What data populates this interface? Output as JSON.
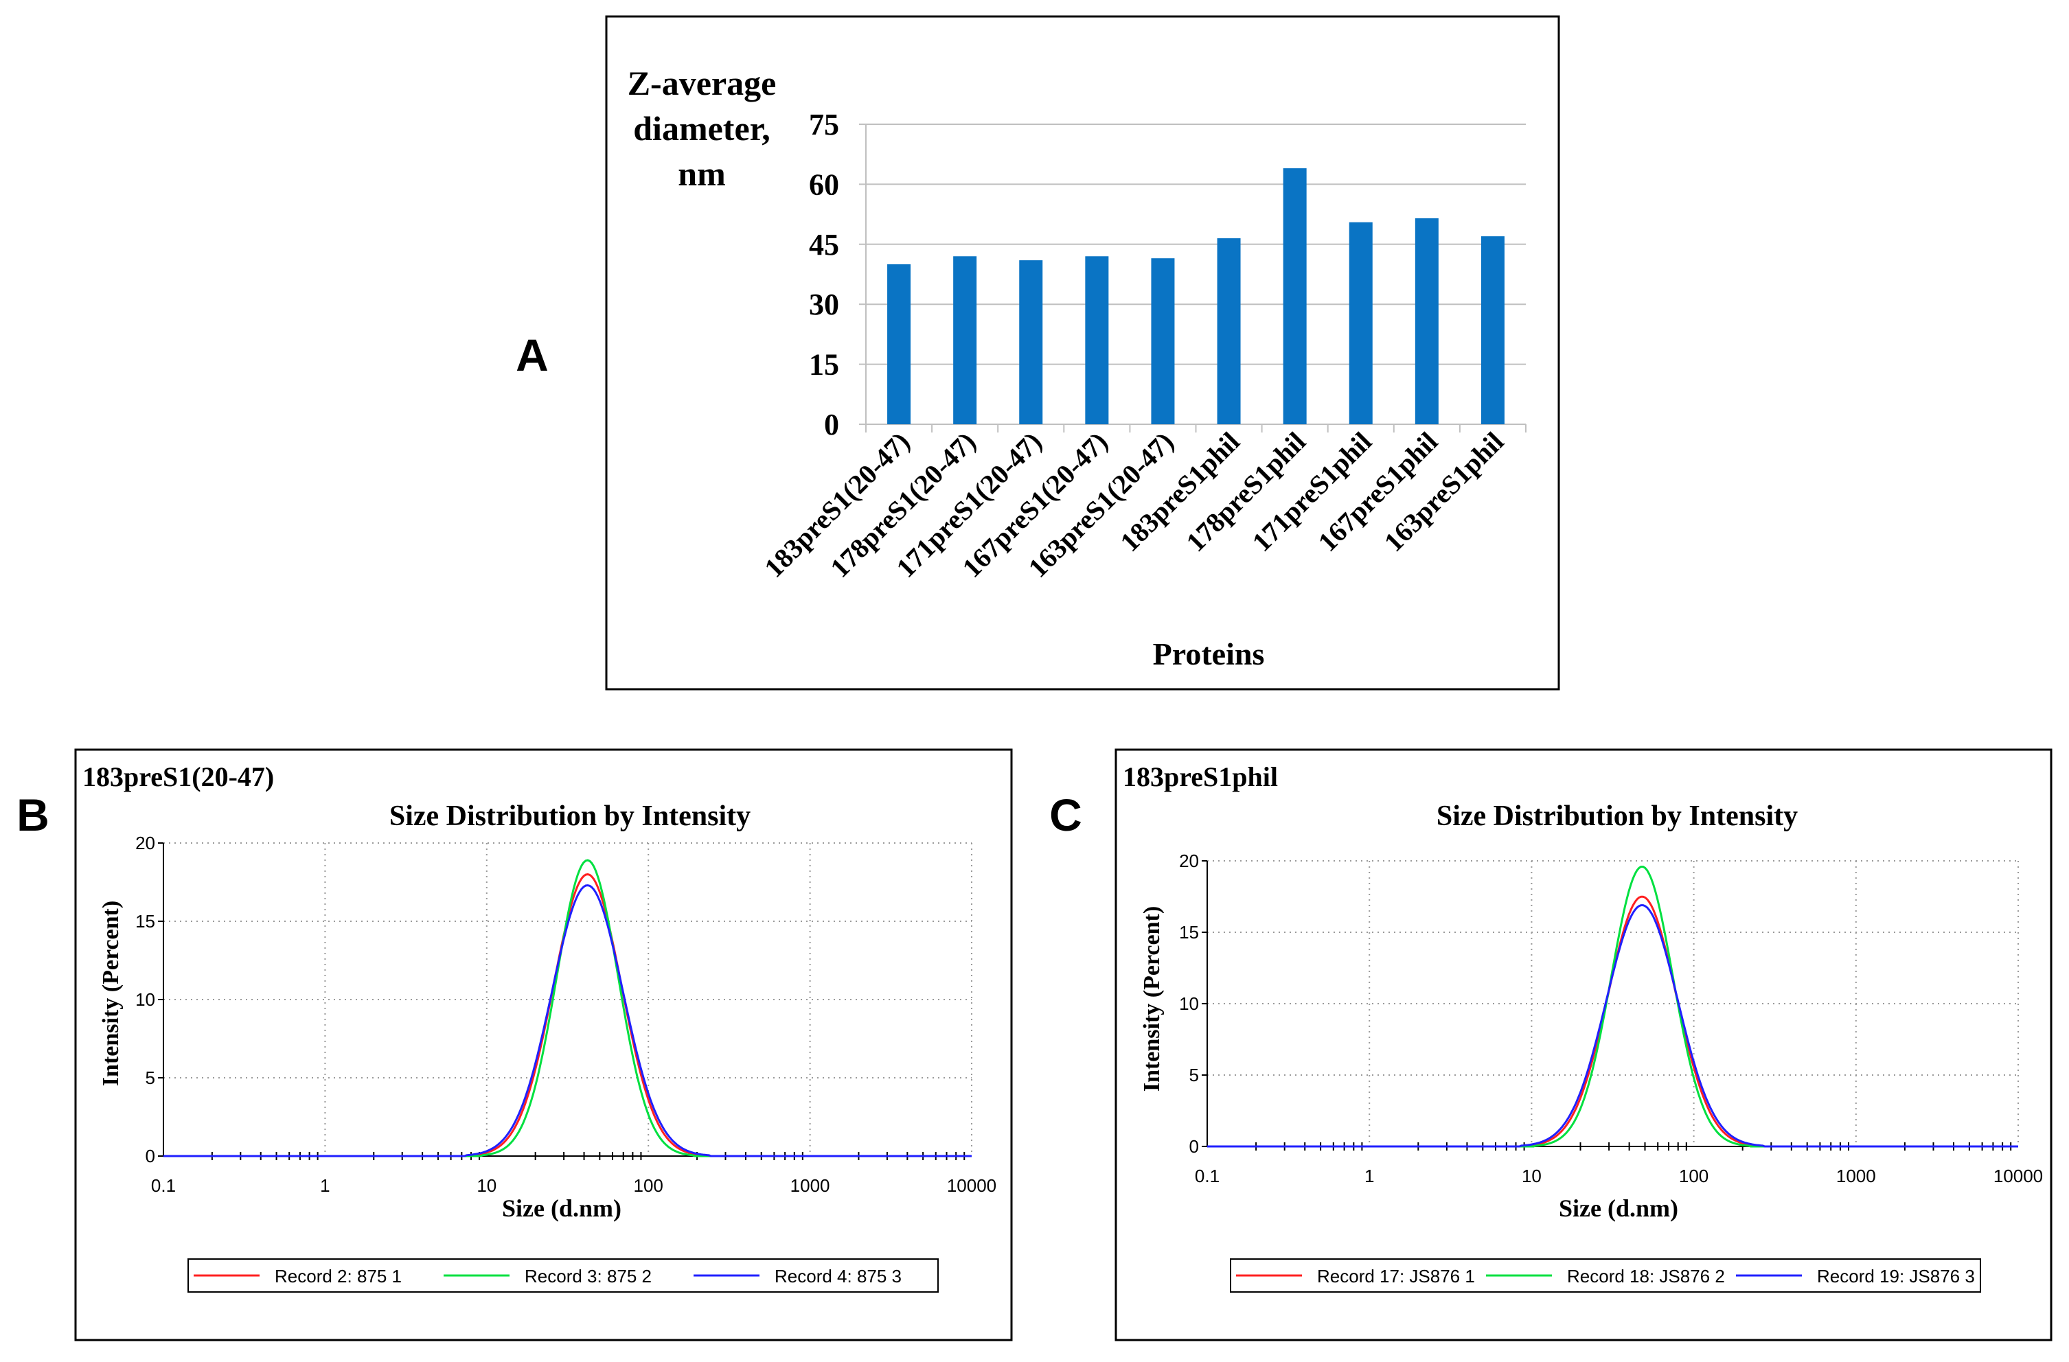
{
  "panels": {
    "a": "A",
    "b": "B",
    "c": "C"
  },
  "colors": {
    "bar": "#0a74c4",
    "red": "#ff2020",
    "green": "#00e040",
    "blue": "#2020ff"
  },
  "chart_data": [
    {
      "type": "bar",
      "ylabel_lines": [
        "Z-average",
        "diameter,",
        "nm"
      ],
      "xlabel": "Proteins",
      "categories": [
        "183preS1(20-47)",
        "178preS1(20-47)",
        "171preS1(20-47)",
        "167preS1(20-47)",
        "163preS1(20-47)",
        "183preS1phil",
        "178preS1phil",
        "171preS1phil",
        "167preS1phil",
        "163preS1phil"
      ],
      "values": [
        40,
        42,
        41,
        42,
        41.5,
        46.5,
        64,
        50.5,
        51.5,
        47
      ],
      "ylim": [
        0,
        75
      ],
      "yticks": [
        "0",
        "15",
        "30",
        "45",
        "60",
        "75"
      ]
    },
    {
      "type": "line",
      "corner_label": "183preS1(20-47)",
      "title": "Size Distribution by Intensity",
      "xlabel": "Size (d.nm)",
      "ylabel": "Intensity (Percent)",
      "xscale": "log",
      "xlim": [
        0.1,
        10000
      ],
      "ylim": [
        0,
        20
      ],
      "xticks": [
        "0.1",
        "1",
        "10",
        "100",
        "1000",
        "10000"
      ],
      "yticks": [
        "0",
        "5",
        "10",
        "15",
        "20"
      ],
      "peak_center": 42,
      "series": [
        {
          "name": "Record 2: 875 1",
          "color": "red",
          "peak": 18.0
        },
        {
          "name": "Record 3: 875 2",
          "color": "green",
          "peak": 18.9
        },
        {
          "name": "Record 4: 875 3",
          "color": "blue",
          "peak": 17.3
        }
      ]
    },
    {
      "type": "line",
      "corner_label": "183preS1phil",
      "title": "Size Distribution by Intensity",
      "xlabel": "Size (d.nm)",
      "ylabel": "Intensity (Percent)",
      "xscale": "log",
      "xlim": [
        0.1,
        10000
      ],
      "ylim": [
        0,
        20
      ],
      "xticks": [
        "0.1",
        "1",
        "10",
        "100",
        "1000",
        "10000"
      ],
      "yticks": [
        "0",
        "5",
        "10",
        "15",
        "20"
      ],
      "peak_center": 48,
      "series": [
        {
          "name": "Record 17: JS876 1",
          "color": "red",
          "peak": 17.5
        },
        {
          "name": "Record 18: JS876 2",
          "color": "green",
          "peak": 19.6
        },
        {
          "name": "Record 19: JS876 3",
          "color": "blue",
          "peak": 16.9
        }
      ]
    }
  ]
}
